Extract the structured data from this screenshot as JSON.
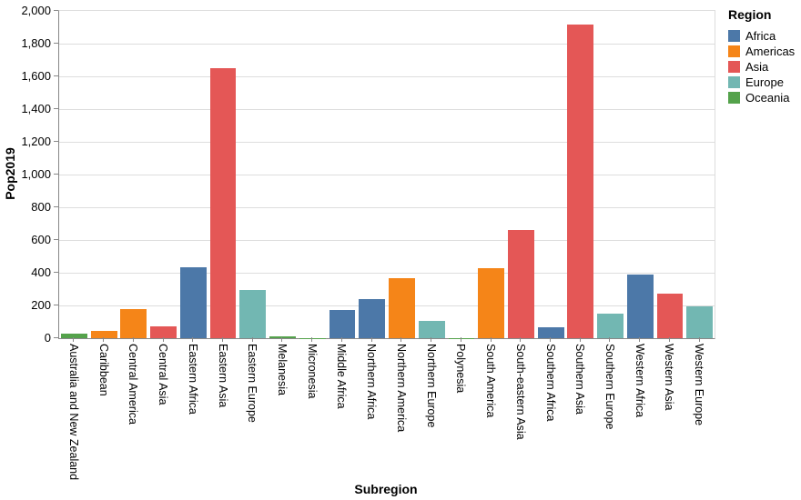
{
  "chart_data": {
    "type": "bar",
    "title": "",
    "xlabel": "Subregion",
    "ylabel": "Pop2019",
    "ylim": [
      0,
      2000
    ],
    "ytick_step": 200,
    "ytick_labels": [
      "0",
      "200",
      "400",
      "600",
      "800",
      "1,000",
      "1,200",
      "1,400",
      "1,600",
      "1,800",
      "2,000"
    ],
    "grid": true,
    "legend": {
      "title": "Region",
      "position": "right",
      "entries": [
        {
          "label": "Africa",
          "color": "#4c78a8"
        },
        {
          "label": "Americas",
          "color": "#f58518"
        },
        {
          "label": "Asia",
          "color": "#e45756"
        },
        {
          "label": "Europe",
          "color": "#72b7b2"
        },
        {
          "label": "Oceania",
          "color": "#54a24b"
        }
      ]
    },
    "bars": [
      {
        "subregion": "Australia and New Zealand",
        "region": "Oceania",
        "value": 30
      },
      {
        "subregion": "Caribbean",
        "region": "Americas",
        "value": 43
      },
      {
        "subregion": "Central America",
        "region": "Americas",
        "value": 178
      },
      {
        "subregion": "Central Asia",
        "region": "Asia",
        "value": 74
      },
      {
        "subregion": "Eastern Africa",
        "region": "Africa",
        "value": 434
      },
      {
        "subregion": "Eastern Asia",
        "region": "Asia",
        "value": 1651
      },
      {
        "subregion": "Eastern Europe",
        "region": "Europe",
        "value": 293
      },
      {
        "subregion": "Melanesia",
        "region": "Oceania",
        "value": 11
      },
      {
        "subregion": "Micronesia",
        "region": "Oceania",
        "value": 0.5
      },
      {
        "subregion": "Middle Africa",
        "region": "Africa",
        "value": 174
      },
      {
        "subregion": "Northern Africa",
        "region": "Africa",
        "value": 241
      },
      {
        "subregion": "Northern America",
        "region": "Americas",
        "value": 367
      },
      {
        "subregion": "Northern Europe",
        "region": "Europe",
        "value": 106
      },
      {
        "subregion": "Polynesia",
        "region": "Oceania",
        "value": 0.7
      },
      {
        "subregion": "South America",
        "region": "Americas",
        "value": 427
      },
      {
        "subregion": "South-eastern Asia",
        "region": "Asia",
        "value": 662
      },
      {
        "subregion": "Southern Africa",
        "region": "Africa",
        "value": 67
      },
      {
        "subregion": "Southern Asia",
        "region": "Asia",
        "value": 1919
      },
      {
        "subregion": "Southern Europe",
        "region": "Europe",
        "value": 152
      },
      {
        "subregion": "Western Africa",
        "region": "Africa",
        "value": 391
      },
      {
        "subregion": "Western Asia",
        "region": "Asia",
        "value": 275
      },
      {
        "subregion": "Western Europe",
        "region": "Europe",
        "value": 196
      }
    ]
  }
}
